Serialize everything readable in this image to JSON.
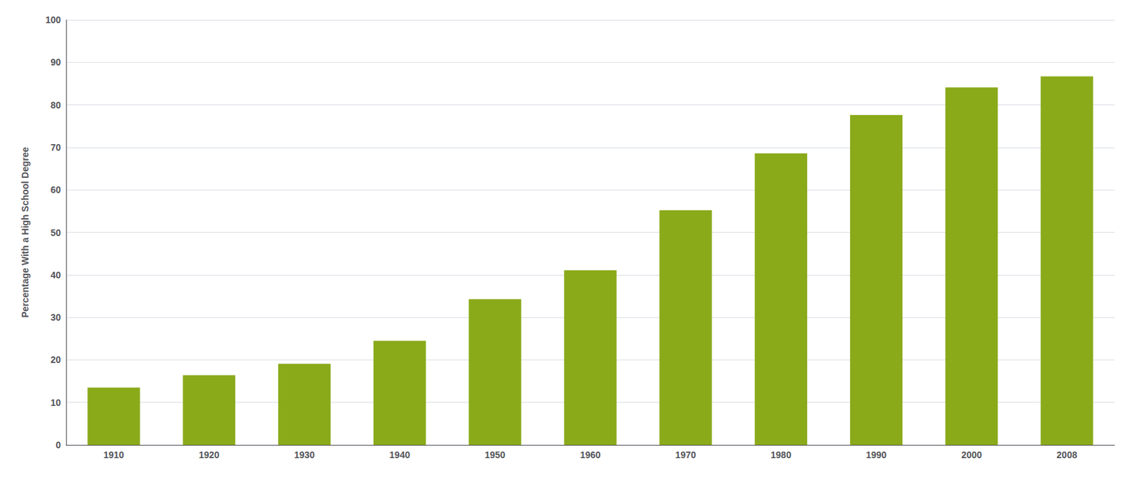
{
  "chart_data": {
    "type": "bar",
    "ylabel": "Percentage With a High School Degree",
    "categories": [
      "1910",
      "1920",
      "1930",
      "1940",
      "1950",
      "1960",
      "1970",
      "1980",
      "1990",
      "2000",
      "2008"
    ],
    "values": [
      13.5,
      16.4,
      19.1,
      24.5,
      34.3,
      41.1,
      55.2,
      68.6,
      77.6,
      84.1,
      86.7
    ],
    "color": "#8aaa1a",
    "ylim": [
      0,
      100
    ],
    "yticks": [
      0,
      10,
      20,
      30,
      40,
      50,
      60,
      70,
      80,
      90,
      100
    ],
    "grid": true
  }
}
